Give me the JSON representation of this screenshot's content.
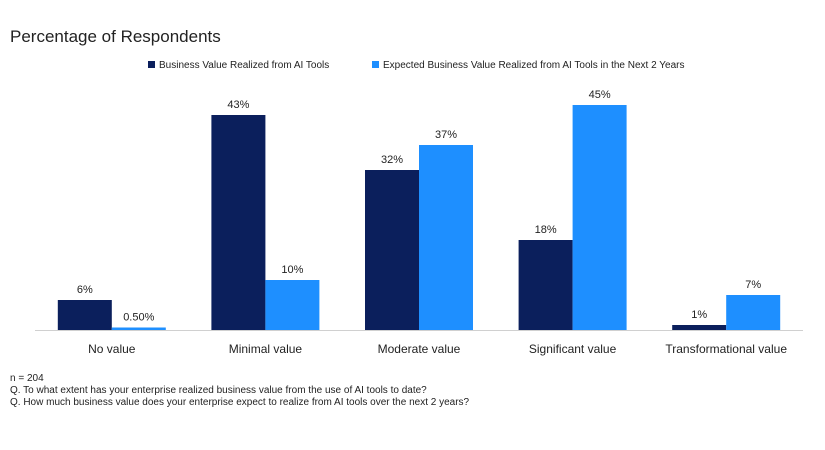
{
  "chart_data": {
    "type": "bar",
    "title": "Percentage of Respondents",
    "xlabel": "",
    "ylabel": "",
    "ylim": [
      0,
      50
    ],
    "grid": false,
    "legend_position": "top",
    "categories": [
      "No value",
      "Minimal value",
      "Moderate value",
      "Significant value",
      "Transformational value"
    ],
    "series": [
      {
        "name": "Business Value Realized from AI Tools",
        "color": "#0b1f5c",
        "values": [
          6,
          43,
          32,
          18,
          1
        ],
        "labels": [
          "6%",
          "43%",
          "32%",
          "18%",
          "1%"
        ]
      },
      {
        "name": "Expected Business Value Realized from AI Tools in the Next 2 Years",
        "color": "#1e8fff",
        "values": [
          0.5,
          10,
          37,
          45,
          7
        ],
        "labels": [
          "0.50%",
          "10%",
          "37%",
          "45%",
          "7%"
        ]
      }
    ]
  },
  "notes": {
    "n": "n = 204",
    "q1": "Q. To what extent has your enterprise realized business value from the use of AI tools to date?",
    "q2": "Q. How much business value does your enterprise expect to realize from AI tools over the next 2 years?"
  }
}
